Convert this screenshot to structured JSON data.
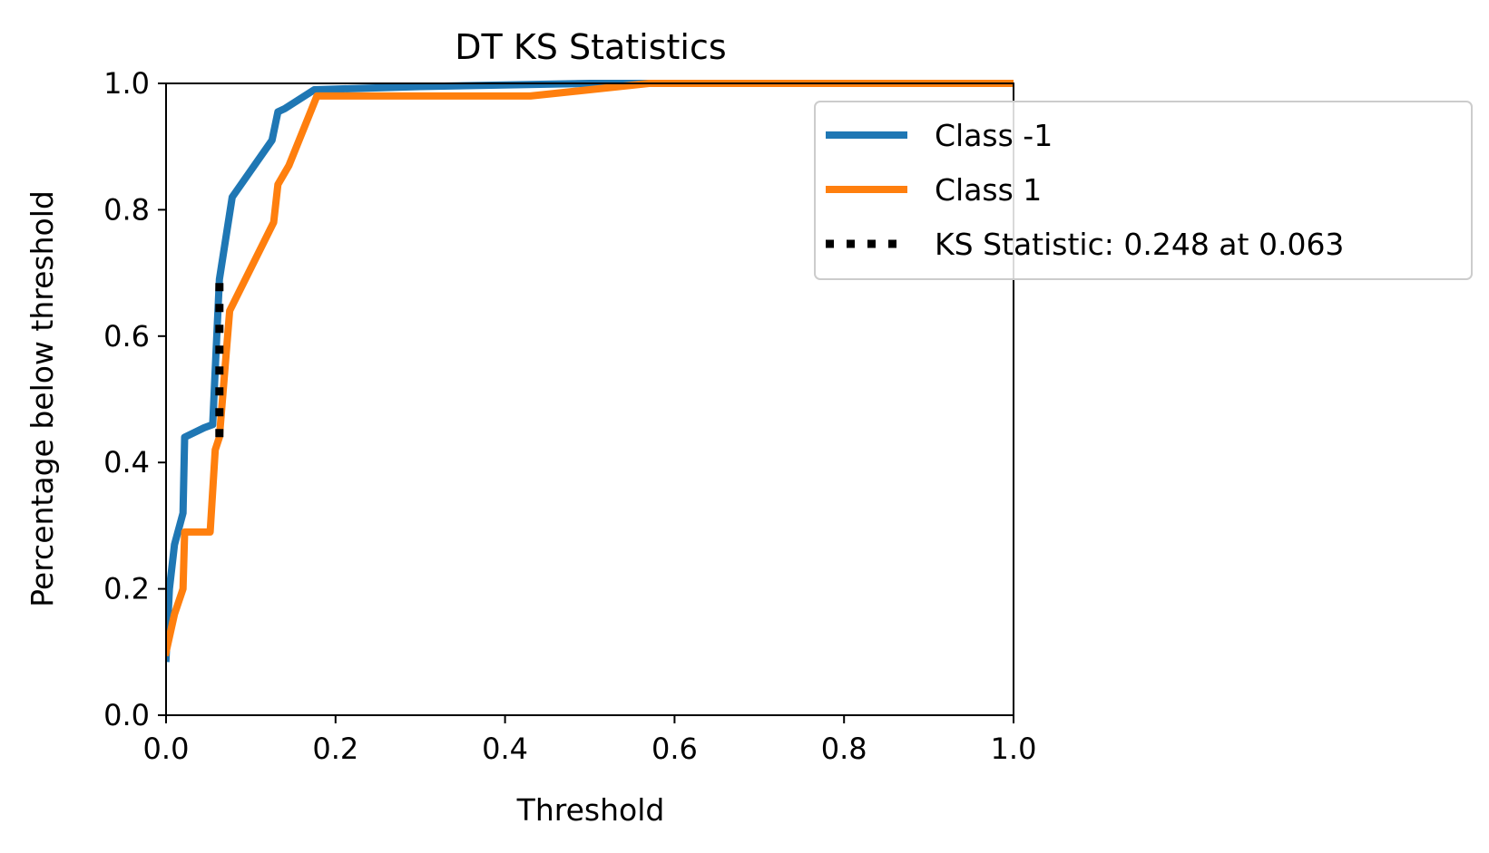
{
  "chart_data": {
    "type": "line",
    "title": "DT KS Statistics",
    "xlabel": "Threshold",
    "ylabel": "Percentage below threshold",
    "xlim": [
      0.0,
      1.0
    ],
    "ylim": [
      0.0,
      1.0
    ],
    "xticks": [
      "0.0",
      "0.2",
      "0.4",
      "0.6",
      "0.8",
      "1.0"
    ],
    "yticks": [
      "0.0",
      "0.2",
      "0.4",
      "0.6",
      "0.8",
      "1.0"
    ],
    "grid": false,
    "legend_position": "upper-right, extending outside axes",
    "series": [
      {
        "name": "Class -1",
        "color": "#1f77b4",
        "line_style": "solid",
        "points": [
          [
            0.0,
            0.09
          ],
          [
            0.004,
            0.2
          ],
          [
            0.01,
            0.27
          ],
          [
            0.02,
            0.32
          ],
          [
            0.022,
            0.44
          ],
          [
            0.045,
            0.455
          ],
          [
            0.055,
            0.46
          ],
          [
            0.063,
            0.69
          ],
          [
            0.078,
            0.82
          ],
          [
            0.125,
            0.91
          ],
          [
            0.132,
            0.955
          ],
          [
            0.14,
            0.96
          ],
          [
            0.175,
            0.99
          ],
          [
            0.3,
            0.995
          ],
          [
            0.5,
            1.0
          ],
          [
            1.0,
            1.0
          ]
        ]
      },
      {
        "name": "Class 1",
        "color": "#ff7f0e",
        "line_style": "solid",
        "points": [
          [
            0.0,
            0.1
          ],
          [
            0.01,
            0.16
          ],
          [
            0.02,
            0.2
          ],
          [
            0.022,
            0.29
          ],
          [
            0.052,
            0.29
          ],
          [
            0.058,
            0.42
          ],
          [
            0.063,
            0.44
          ],
          [
            0.075,
            0.64
          ],
          [
            0.127,
            0.78
          ],
          [
            0.132,
            0.84
          ],
          [
            0.145,
            0.87
          ],
          [
            0.178,
            0.98
          ],
          [
            0.3,
            0.98
          ],
          [
            0.43,
            0.98
          ],
          [
            0.57,
            1.0
          ],
          [
            1.0,
            1.0
          ]
        ]
      },
      {
        "name": "KS Statistic: 0.248 at 0.063",
        "color": "#000000",
        "line_style": "dotted",
        "points": [
          [
            0.063,
            0.44
          ],
          [
            0.063,
            0.688
          ]
        ]
      }
    ]
  }
}
